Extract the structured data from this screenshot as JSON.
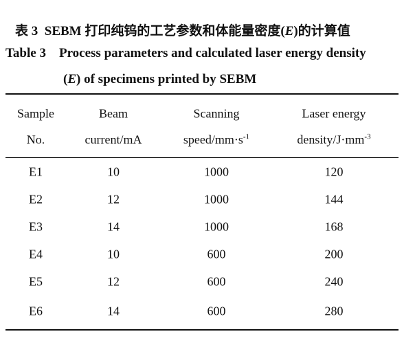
{
  "caption": {
    "cn_label": "表 3",
    "cn_before": "SEBM 打印纯钨的工艺参数和体能量密度(",
    "cn_var": "E",
    "cn_after": ")的计算值",
    "en_label": "Table 3",
    "en_line1": "Process parameters and calculated laser energy density",
    "en_line2_before": "(",
    "en_var": "E",
    "en_line2_after": ") of specimens printed by SEBM"
  },
  "table": {
    "headers": [
      {
        "line1": "Sample",
        "line2": "No."
      },
      {
        "line1": "Beam",
        "line2": "current/mA"
      },
      {
        "line1": "Scanning",
        "line2": "speed/mm·s",
        "sup": "-1"
      },
      {
        "line1": "Laser energy",
        "line2": "density/J·mm",
        "sup": "-3"
      }
    ],
    "rows": [
      [
        "E1",
        10,
        1000,
        120
      ],
      [
        "E2",
        12,
        1000,
        144
      ],
      [
        "E3",
        14,
        1000,
        168
      ],
      [
        "E4",
        10,
        600,
        200
      ],
      [
        "E5",
        12,
        600,
        240
      ],
      [
        "E6",
        14,
        600,
        280
      ]
    ]
  }
}
